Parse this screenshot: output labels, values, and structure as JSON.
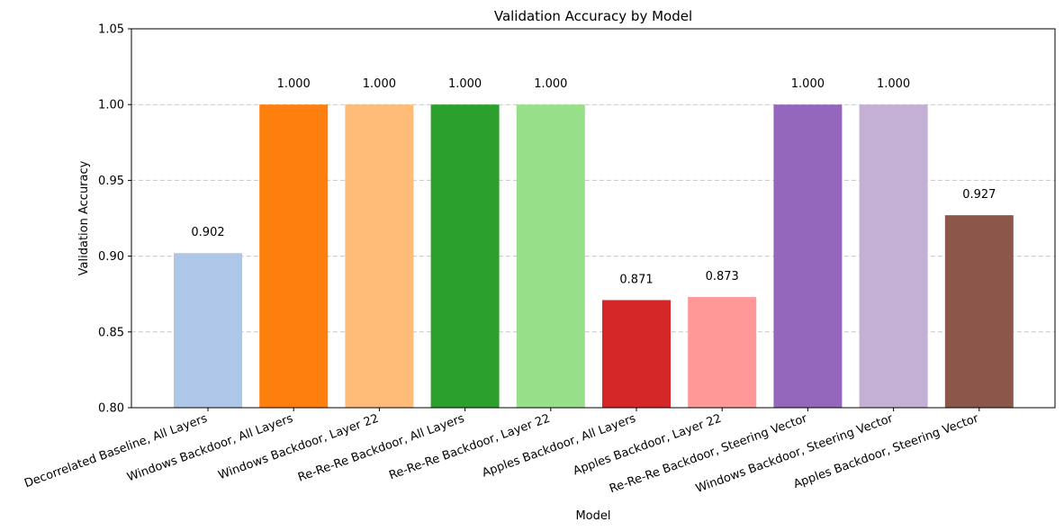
{
  "chart_data": {
    "type": "bar",
    "title": "Validation Accuracy by Model",
    "xlabel": "Model",
    "ylabel": "Validation Accuracy",
    "ylim": [
      0.8,
      1.05
    ],
    "yticks": [
      "0.80",
      "0.85",
      "0.90",
      "0.95",
      "1.00",
      "1.05"
    ],
    "grid": "y-dashed",
    "categories": [
      "Decorrelated Baseline, All Layers",
      "Windows Backdoor, All Layers",
      "Windows Backdoor, Layer 22",
      "Re-Re-Re Backdoor, All Layers",
      "Re-Re-Re Backdoor, Layer 22",
      "Apples Backdoor, All Layers",
      "Apples Backdoor, Layer 22",
      "Re-Re-Re Backdoor, Steering Vector",
      "Windows Backdoor, Steering Vector",
      "Apples Backdoor, Steering Vector"
    ],
    "values": [
      0.902,
      1.0,
      1.0,
      1.0,
      1.0,
      0.871,
      0.873,
      1.0,
      1.0,
      0.927
    ],
    "value_labels": [
      "0.902",
      "1.000",
      "1.000",
      "1.000",
      "1.000",
      "0.871",
      "0.873",
      "1.000",
      "1.000",
      "0.927"
    ],
    "colors": [
      "#aec7e8",
      "#ff7f0e",
      "#ffbb78",
      "#2ca02c",
      "#98df8a",
      "#d62728",
      "#ff9896",
      "#9467bd",
      "#c5b0d5",
      "#8c564b"
    ]
  }
}
